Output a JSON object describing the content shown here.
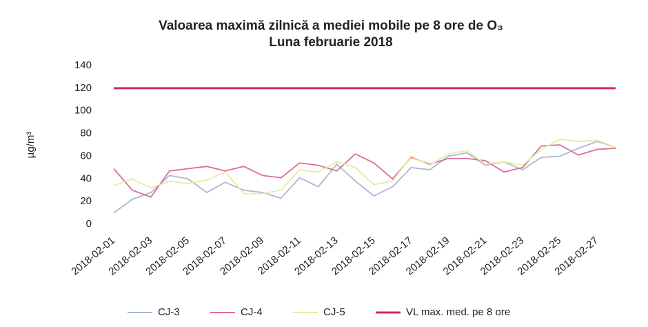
{
  "chart_data": {
    "type": "line",
    "title": "Valoarea maximă zilnică a mediei mobile pe 8 ore de O₃",
    "subtitle": "Luna februarie 2018",
    "y_label": "µg/m³",
    "categories": [
      "2018-02-01",
      null,
      "2018-02-03",
      null,
      "2018-02-05",
      null,
      "2018-02-07",
      null,
      "2018-02-09",
      null,
      "2018-02-11",
      null,
      "2018-02-13",
      null,
      "2018-02-15",
      null,
      "2018-02-17",
      null,
      "2018-02-19",
      null,
      "2018-02-21",
      null,
      "2018-02-23",
      null,
      "2018-02-25",
      null,
      "2018-02-27",
      null
    ],
    "series": [
      {
        "name": "CJ-3",
        "color": "#a9b8d6",
        "values": [
          10,
          22,
          28,
          43,
          40,
          28,
          37,
          30,
          28,
          23,
          41,
          33,
          53,
          38,
          25,
          33,
          50,
          48,
          60,
          63,
          52,
          55,
          48,
          59,
          60,
          67,
          73,
          68
        ]
      },
      {
        "name": "CJ-4",
        "color": "#e06a9a",
        "values": [
          49,
          30,
          24,
          47,
          49,
          51,
          47,
          51,
          43,
          41,
          54,
          52,
          47,
          62,
          54,
          40,
          59,
          53,
          58,
          58,
          56,
          46,
          50,
          69,
          70,
          61,
          66,
          67
        ]
      },
      {
        "name": "CJ-5",
        "color": "#e4eda0",
        "values": [
          34,
          40,
          32,
          38,
          36,
          39,
          46,
          27,
          27,
          30,
          48,
          46,
          55,
          50,
          35,
          38,
          60,
          52,
          62,
          65,
          53,
          55,
          52,
          66,
          75,
          73,
          74,
          68
        ]
      },
      {
        "name": "VL max. med. pe 8 ore",
        "color": "#d6246e",
        "values": [
          120,
          120,
          120,
          120,
          120,
          120,
          120,
          120,
          120,
          120,
          120,
          120,
          120,
          120,
          120,
          120,
          120,
          120,
          120,
          120,
          120,
          120,
          120,
          120,
          120,
          120,
          120,
          120
        ]
      }
    ],
    "ylim": [
      0,
      140
    ],
    "yticks": [
      0,
      20,
      40,
      60,
      80,
      100,
      120,
      140
    ]
  }
}
